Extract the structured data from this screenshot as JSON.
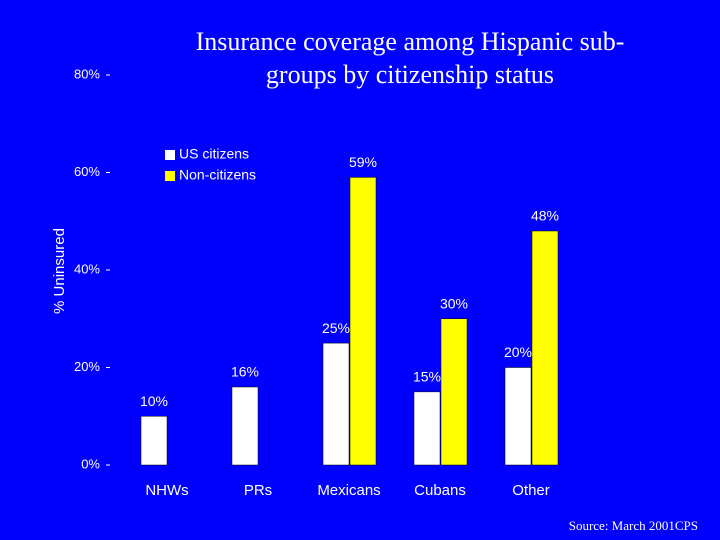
{
  "chart_data": {
    "type": "bar",
    "title": [
      "Insurance coverage among Hispanic sub-",
      "groups by citizenship status"
    ],
    "ylabel": "% Uninsured",
    "source": "Source: March 2001CPS",
    "categories": [
      "NHWs",
      "PRs",
      "Mexicans",
      "Cubans",
      "Other"
    ],
    "series": [
      {
        "name": "US citizens",
        "color": "#ffffff",
        "values": [
          10,
          16,
          25,
          15,
          20
        ],
        "value_labels": [
          "10%",
          "16%",
          "25%",
          "15%",
          "20%"
        ]
      },
      {
        "name": "Non-citizens",
        "color": "#ffff00",
        "values": [
          null,
          null,
          59,
          30,
          48
        ],
        "value_labels": [
          null,
          null,
          "59%",
          "30%",
          "48%"
        ]
      }
    ],
    "ylim": [
      0,
      80
    ],
    "yticks": [
      {
        "value": 0,
        "label": "0%"
      },
      {
        "value": 20,
        "label": "20%"
      },
      {
        "value": 40,
        "label": "40%"
      },
      {
        "value": 60,
        "label": "60%"
      },
      {
        "value": 80,
        "label": "80%"
      }
    ],
    "legend": "upper left"
  }
}
